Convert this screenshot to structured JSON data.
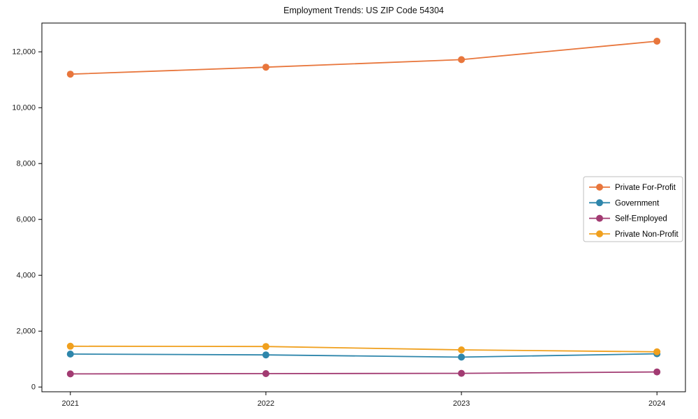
{
  "title": "Employment Trends: US ZIP Code 54304",
  "chart_data": {
    "type": "line",
    "title": "Employment Trends: US ZIP Code 54304",
    "categories": [
      "2021",
      "2022",
      "2023",
      "2024"
    ],
    "series": [
      {
        "name": "Private For-Profit",
        "color": "#E8763C",
        "values": [
          11200,
          11450,
          11720,
          12380
        ]
      },
      {
        "name": "Government",
        "color": "#2E86AB",
        "values": [
          1180,
          1150,
          1070,
          1190
        ]
      },
      {
        "name": "Self-Employed",
        "color": "#A23B72",
        "values": [
          470,
          480,
          490,
          540
        ]
      },
      {
        "name": "Private Non-Profit",
        "color": "#F0A01E",
        "values": [
          1460,
          1450,
          1330,
          1260
        ]
      }
    ],
    "xlabel": "",
    "ylabel": "",
    "ylim": [
      -170,
      13030
    ],
    "yticks": [
      0,
      2000,
      4000,
      6000,
      8000,
      10000,
      12000
    ],
    "ytick_labels": [
      "0",
      "2,000",
      "4,000",
      "6,000",
      "8,000",
      "10,000",
      "12,000"
    ],
    "grid": false,
    "legend_position": "right",
    "axis_color": "#000000",
    "text_color": "#1a1a1a",
    "legend_border_color": "#bfbfbf"
  }
}
